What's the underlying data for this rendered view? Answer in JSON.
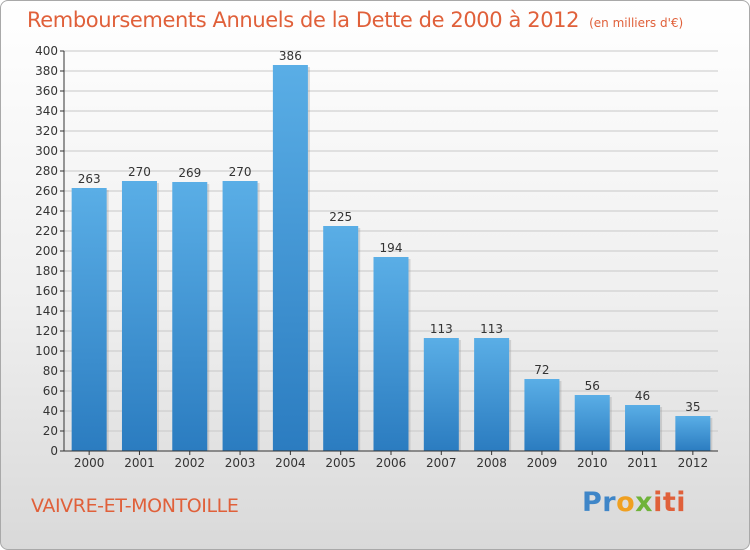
{
  "header": {
    "title": "Remboursements Annuels de la Dette de 2000 à 2012",
    "unit": "(en milliers d'€)"
  },
  "footer": {
    "commune": "VAIVRE-ET-MONTOILLE",
    "brand_parts": [
      "Pr",
      "o",
      "x",
      "iti"
    ]
  },
  "colors": {
    "title": "#e0603a",
    "bar_top": "#5aaee6",
    "bar_bottom": "#2b7cc0",
    "grid": "#c8c8c8",
    "axis": "#333333"
  },
  "chart_data": {
    "type": "bar",
    "title": "Remboursements Annuels de la Dette de 2000 à 2012",
    "unit": "(en milliers d'€)",
    "categories": [
      "2000",
      "2001",
      "2002",
      "2003",
      "2004",
      "2005",
      "2006",
      "2007",
      "2008",
      "2009",
      "2010",
      "2011",
      "2012"
    ],
    "values": [
      263,
      270,
      269,
      270,
      386,
      225,
      194,
      113,
      113,
      72,
      56,
      46,
      35
    ],
    "ylim": [
      0,
      400
    ],
    "ytick_step": 20,
    "grid": true,
    "data_labels": true
  }
}
